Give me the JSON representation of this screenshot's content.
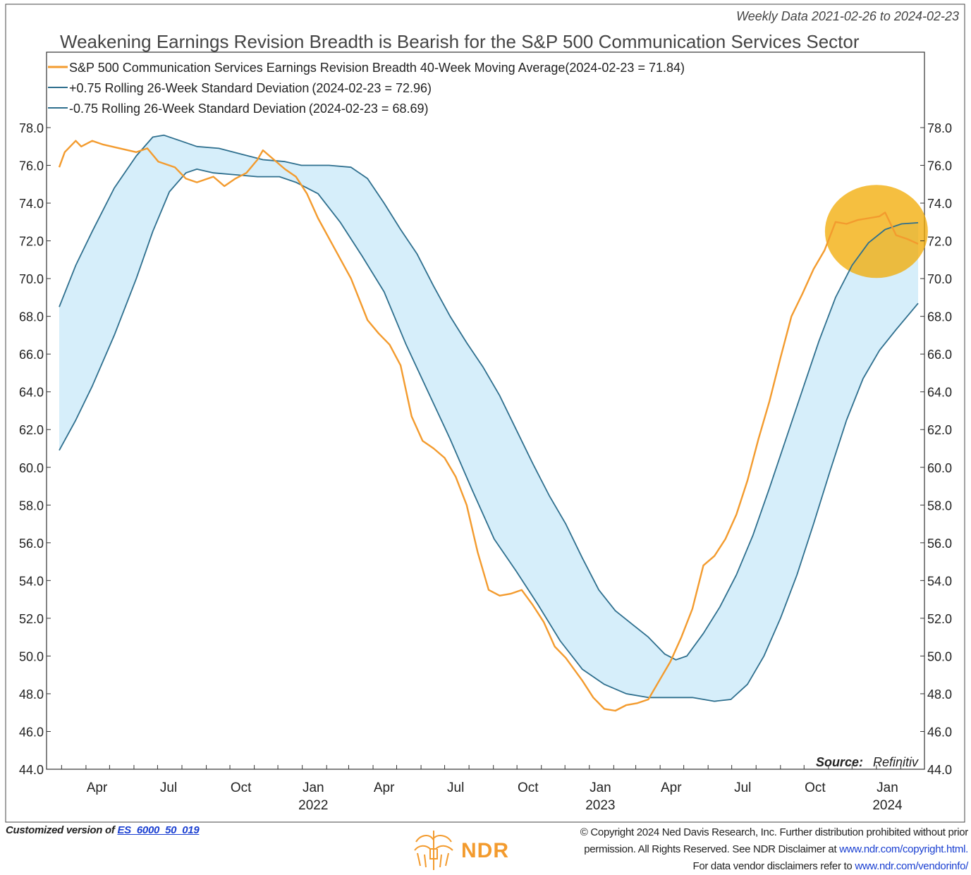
{
  "header": {
    "subtitle": "Weekly Data 2021-02-26 to 2024-02-23",
    "title": "Weakening Earnings Revision Breadth is Bearish for the S&P 500 Communication Services Sector"
  },
  "legend": [
    {
      "label": "S&P 500 Communication Services Earnings Revision Breadth 40-Week Moving Average",
      "value": "(2024-02-23 = 71.84)",
      "color": "#f39b2e"
    },
    {
      "label": "+0.75 Rolling 26-Week Standard Deviation",
      "value": "(2024-02-23 = 72.96)",
      "color": "#2e6f8e"
    },
    {
      "label": "-0.75 Rolling 26-Week Standard Deviation",
      "value": "(2024-02-23 = 68.69)",
      "color": "#2e6f8e"
    }
  ],
  "source": {
    "label": "Source:",
    "value": "Refinitiv"
  },
  "footer": {
    "customized_prefix": "Customized version of",
    "customized_link": "ES_6000_50_019",
    "copyright_line1": "© Copyright 2024 Ned Davis Research, Inc. Further distribution prohibited without prior",
    "copyright_line2_a": "permission. All Rights Reserved. See NDR Disclaimer at",
    "copyright_line2_link": "www.ndr.com/copyright.html.",
    "copyright_line3_a": "For data vendor disclaimers refer to",
    "copyright_line3_link": "www.ndr.com/vendorinfo/",
    "logo_text": "NDR"
  },
  "chart_data": {
    "type": "line",
    "x_range": [
      "2021-02-26",
      "2024-02-23"
    ],
    "ylim": [
      44.0,
      78.0
    ],
    "y_ticks": [
      "78.0",
      "76.0",
      "74.0",
      "72.0",
      "70.0",
      "68.0",
      "66.0",
      "64.0",
      "62.0",
      "60.0",
      "58.0",
      "56.0",
      "54.0",
      "52.0",
      "50.0",
      "48.0",
      "46.0",
      "44.0"
    ],
    "x_ticks": [
      {
        "date": "2021-04-01",
        "label": "Apr",
        "year": ""
      },
      {
        "date": "2021-07-01",
        "label": "Jul",
        "year": ""
      },
      {
        "date": "2021-10-01",
        "label": "Oct",
        "year": ""
      },
      {
        "date": "2022-01-01",
        "label": "Jan",
        "year": "2022"
      },
      {
        "date": "2022-04-01",
        "label": "Apr",
        "year": ""
      },
      {
        "date": "2022-07-01",
        "label": "Jul",
        "year": ""
      },
      {
        "date": "2022-10-01",
        "label": "Oct",
        "year": ""
      },
      {
        "date": "2023-01-01",
        "label": "Jan",
        "year": "2023"
      },
      {
        "date": "2023-04-01",
        "label": "Apr",
        "year": ""
      },
      {
        "date": "2023-07-01",
        "label": "Jul",
        "year": ""
      },
      {
        "date": "2023-10-01",
        "label": "Oct",
        "year": ""
      },
      {
        "date": "2024-01-01",
        "label": "Jan",
        "year": "2024"
      }
    ],
    "grid": false,
    "legend_position": "top-left",
    "highlight": {
      "type": "circle",
      "center_date": "2024-01-01",
      "center_value": 72.5,
      "color": "#f2a900"
    },
    "series": [
      {
        "name": "S&P 500 Communication Services Earnings Revision Breadth 40-Week Moving Average",
        "color": "#f39b2e",
        "points": [
          [
            "2021-02-26",
            75.9
          ],
          [
            "2021-03-05",
            76.7
          ],
          [
            "2021-03-19",
            77.3
          ],
          [
            "2021-03-26",
            77.0
          ],
          [
            "2021-04-09",
            77.3
          ],
          [
            "2021-04-23",
            77.1
          ],
          [
            "2021-05-14",
            76.9
          ],
          [
            "2021-06-04",
            76.7
          ],
          [
            "2021-06-18",
            76.9
          ],
          [
            "2021-07-02",
            76.2
          ],
          [
            "2021-07-23",
            75.9
          ],
          [
            "2021-08-06",
            75.3
          ],
          [
            "2021-08-20",
            75.1
          ],
          [
            "2021-09-03",
            75.3
          ],
          [
            "2021-09-10",
            75.4
          ],
          [
            "2021-09-24",
            74.9
          ],
          [
            "2021-10-08",
            75.3
          ],
          [
            "2021-10-22",
            75.6
          ],
          [
            "2021-11-05",
            76.3
          ],
          [
            "2021-11-12",
            76.8
          ],
          [
            "2021-11-26",
            76.3
          ],
          [
            "2021-12-10",
            75.8
          ],
          [
            "2021-12-24",
            75.4
          ],
          [
            "2022-01-07",
            74.5
          ],
          [
            "2022-01-21",
            73.2
          ],
          [
            "2022-02-11",
            71.6
          ],
          [
            "2022-03-04",
            70.0
          ],
          [
            "2022-03-25",
            67.8
          ],
          [
            "2022-04-08",
            67.1
          ],
          [
            "2022-04-22",
            66.5
          ],
          [
            "2022-05-06",
            65.4
          ],
          [
            "2022-05-20",
            62.7
          ],
          [
            "2022-06-03",
            61.4
          ],
          [
            "2022-06-17",
            61.0
          ],
          [
            "2022-07-01",
            60.5
          ],
          [
            "2022-07-15",
            59.5
          ],
          [
            "2022-07-29",
            58.0
          ],
          [
            "2022-08-12",
            55.5
          ],
          [
            "2022-08-26",
            53.5
          ],
          [
            "2022-09-09",
            53.2
          ],
          [
            "2022-09-23",
            53.3
          ],
          [
            "2022-10-07",
            53.5
          ],
          [
            "2022-10-21",
            52.7
          ],
          [
            "2022-11-04",
            51.8
          ],
          [
            "2022-11-18",
            50.5
          ],
          [
            "2022-12-02",
            49.9
          ],
          [
            "2022-12-23",
            48.7
          ],
          [
            "2023-01-06",
            47.8
          ],
          [
            "2023-01-20",
            47.2
          ],
          [
            "2023-02-03",
            47.1
          ],
          [
            "2023-02-17",
            47.4
          ],
          [
            "2023-03-03",
            47.5
          ],
          [
            "2023-03-17",
            47.7
          ],
          [
            "2023-03-31",
            48.7
          ],
          [
            "2023-04-14",
            49.7
          ],
          [
            "2023-04-28",
            51.0
          ],
          [
            "2023-05-12",
            52.5
          ],
          [
            "2023-05-26",
            54.8
          ],
          [
            "2023-06-09",
            55.3
          ],
          [
            "2023-06-23",
            56.2
          ],
          [
            "2023-07-07",
            57.5
          ],
          [
            "2023-07-21",
            59.3
          ],
          [
            "2023-08-04",
            61.5
          ],
          [
            "2023-08-18",
            63.5
          ],
          [
            "2023-09-01",
            65.8
          ],
          [
            "2023-09-15",
            68.0
          ],
          [
            "2023-09-29",
            69.2
          ],
          [
            "2023-10-13",
            70.5
          ],
          [
            "2023-10-27",
            71.5
          ],
          [
            "2023-11-10",
            73.0
          ],
          [
            "2023-11-24",
            72.9
          ],
          [
            "2023-12-08",
            73.1
          ],
          [
            "2023-12-22",
            73.2
          ],
          [
            "2024-01-05",
            73.3
          ],
          [
            "2024-01-12",
            73.5
          ],
          [
            "2024-01-26",
            72.3
          ],
          [
            "2024-02-09",
            72.1
          ],
          [
            "2024-02-23",
            71.84
          ]
        ]
      },
      {
        "name": "+0.75 Rolling 26-Week Standard Deviation",
        "color": "#2e6f8e",
        "points": [
          [
            "2021-02-26",
            68.5
          ],
          [
            "2021-03-19",
            70.7
          ],
          [
            "2021-04-09",
            72.5
          ],
          [
            "2021-05-07",
            74.8
          ],
          [
            "2021-06-04",
            76.5
          ],
          [
            "2021-06-25",
            77.5
          ],
          [
            "2021-07-09",
            77.6
          ],
          [
            "2021-07-30",
            77.3
          ],
          [
            "2021-08-20",
            77.0
          ],
          [
            "2021-09-17",
            76.9
          ],
          [
            "2021-10-15",
            76.6
          ],
          [
            "2021-11-12",
            76.3
          ],
          [
            "2021-12-10",
            76.2
          ],
          [
            "2021-12-31",
            76.0
          ],
          [
            "2022-02-04",
            76.0
          ],
          [
            "2022-03-04",
            75.9
          ],
          [
            "2022-03-25",
            75.3
          ],
          [
            "2022-04-15",
            74.0
          ],
          [
            "2022-05-06",
            72.6
          ],
          [
            "2022-05-27",
            71.3
          ],
          [
            "2022-06-17",
            69.6
          ],
          [
            "2022-07-08",
            68.0
          ],
          [
            "2022-07-29",
            66.6
          ],
          [
            "2022-08-19",
            65.3
          ],
          [
            "2022-09-09",
            63.8
          ],
          [
            "2022-09-30",
            62.0
          ],
          [
            "2022-10-21",
            60.2
          ],
          [
            "2022-11-11",
            58.5
          ],
          [
            "2022-12-02",
            57.0
          ],
          [
            "2022-12-23",
            55.2
          ],
          [
            "2023-01-13",
            53.5
          ],
          [
            "2023-02-03",
            52.4
          ],
          [
            "2023-02-24",
            51.7
          ],
          [
            "2023-03-17",
            51.0
          ],
          [
            "2023-04-07",
            50.1
          ],
          [
            "2023-04-21",
            49.8
          ],
          [
            "2023-05-05",
            50.0
          ],
          [
            "2023-05-26",
            51.2
          ],
          [
            "2023-06-16",
            52.6
          ],
          [
            "2023-07-07",
            54.3
          ],
          [
            "2023-07-28",
            56.4
          ],
          [
            "2023-08-18",
            58.9
          ],
          [
            "2023-09-08",
            61.5
          ],
          [
            "2023-09-29",
            64.1
          ],
          [
            "2023-10-20",
            66.7
          ],
          [
            "2023-11-10",
            69.0
          ],
          [
            "2023-12-01",
            70.7
          ],
          [
            "2023-12-22",
            71.9
          ],
          [
            "2024-01-12",
            72.6
          ],
          [
            "2024-02-02",
            72.9
          ],
          [
            "2024-02-23",
            72.96
          ]
        ]
      },
      {
        "name": "-0.75 Rolling 26-Week Standard Deviation",
        "color": "#2e6f8e",
        "points": [
          [
            "2021-02-26",
            60.9
          ],
          [
            "2021-03-19",
            62.5
          ],
          [
            "2021-04-09",
            64.3
          ],
          [
            "2021-05-07",
            67.0
          ],
          [
            "2021-06-04",
            70.0
          ],
          [
            "2021-06-25",
            72.5
          ],
          [
            "2021-07-16",
            74.6
          ],
          [
            "2021-08-06",
            75.6
          ],
          [
            "2021-08-20",
            75.8
          ],
          [
            "2021-09-10",
            75.6
          ],
          [
            "2021-10-08",
            75.5
          ],
          [
            "2021-11-05",
            75.4
          ],
          [
            "2021-12-03",
            75.4
          ],
          [
            "2021-12-24",
            75.1
          ],
          [
            "2022-01-21",
            74.5
          ],
          [
            "2022-02-18",
            73.0
          ],
          [
            "2022-03-18",
            71.2
          ],
          [
            "2022-04-15",
            69.3
          ],
          [
            "2022-05-13",
            66.5
          ],
          [
            "2022-06-10",
            64.0
          ],
          [
            "2022-07-08",
            61.5
          ],
          [
            "2022-08-05",
            58.8
          ],
          [
            "2022-09-02",
            56.2
          ],
          [
            "2022-09-30",
            54.5
          ],
          [
            "2022-10-28",
            52.7
          ],
          [
            "2022-11-25",
            50.8
          ],
          [
            "2022-12-23",
            49.3
          ],
          [
            "2023-01-20",
            48.5
          ],
          [
            "2023-02-17",
            48.0
          ],
          [
            "2023-03-17",
            47.8
          ],
          [
            "2023-04-14",
            47.8
          ],
          [
            "2023-05-12",
            47.8
          ],
          [
            "2023-06-09",
            47.6
          ],
          [
            "2023-06-30",
            47.7
          ],
          [
            "2023-07-21",
            48.5
          ],
          [
            "2023-08-11",
            50.0
          ],
          [
            "2023-09-01",
            52.0
          ],
          [
            "2023-09-22",
            54.3
          ],
          [
            "2023-10-13",
            57.0
          ],
          [
            "2023-11-03",
            59.8
          ],
          [
            "2023-11-24",
            62.5
          ],
          [
            "2023-12-15",
            64.7
          ],
          [
            "2024-01-05",
            66.2
          ],
          [
            "2024-01-26",
            67.3
          ],
          [
            "2024-02-23",
            68.69
          ]
        ]
      }
    ]
  }
}
